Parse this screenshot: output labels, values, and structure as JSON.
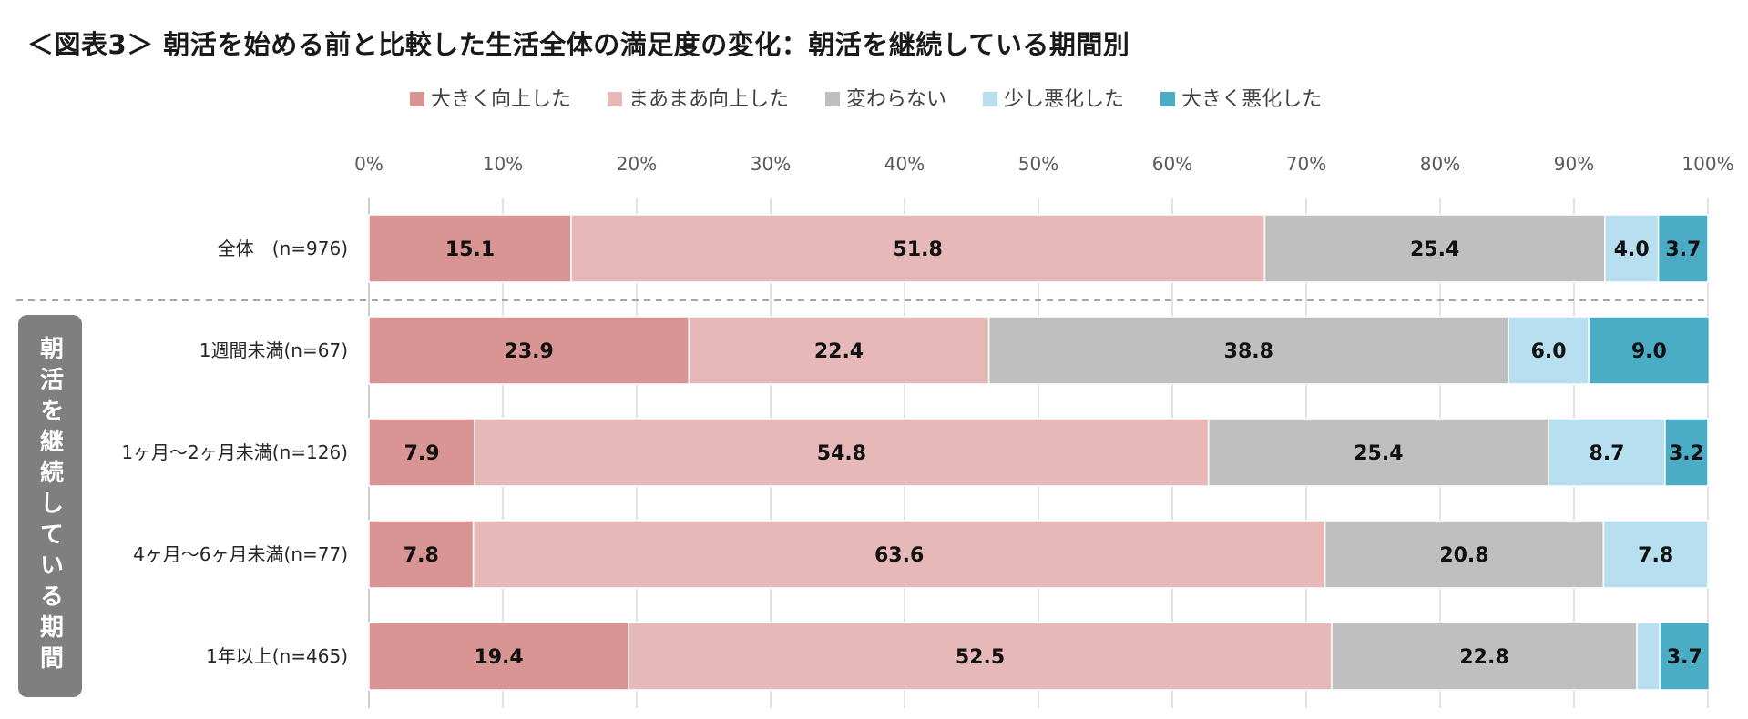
{
  "chart_data": {
    "type": "bar",
    "orientation": "horizontal",
    "stacked": true,
    "percent": true,
    "title": "＜図表3＞ 朝活を始める前と比較した生活全体の満足度の変化：朝活を継続している期間別",
    "group_label": "朝活を継続している期間",
    "categories": [
      "全体　(n=976)",
      "1週間未満(n=67)",
      "1ヶ月～2ヶ月未満(n=126)",
      "4ヶ月～6ヶ月未満(n=77)",
      "1年以上(n=465)"
    ],
    "series": [
      {
        "name": "大きく向上した",
        "color": "#d99594",
        "values": [
          15.1,
          23.9,
          7.9,
          7.8,
          19.4
        ],
        "labels": [
          "15.1",
          "23.9",
          "7.9",
          "7.8",
          "19.4"
        ]
      },
      {
        "name": "まあまあ向上した",
        "color": "#e6b9b8",
        "values": [
          51.8,
          22.4,
          54.8,
          63.6,
          52.5
        ],
        "labels": [
          "51.8",
          "22.4",
          "54.8",
          "63.6",
          "52.5"
        ]
      },
      {
        "name": "変わらない",
        "color": "#bfbfbf",
        "values": [
          25.4,
          38.8,
          25.4,
          20.8,
          22.8
        ],
        "labels": [
          "25.4",
          "38.8",
          "25.4",
          "20.8",
          "22.8"
        ]
      },
      {
        "name": "少し悪化した",
        "color": "#b7dfef",
        "values": [
          4.0,
          6.0,
          8.7,
          7.8,
          1.7
        ],
        "labels": [
          "4.0",
          "6.0",
          "8.7",
          "7.8",
          ""
        ]
      },
      {
        "name": "大きく悪化した",
        "color": "#4bacc6",
        "values": [
          3.7,
          9.0,
          3.2,
          0.0,
          3.7
        ],
        "labels": [
          "3.7",
          "9.0",
          "3.2",
          "",
          "3.7"
        ]
      }
    ],
    "xlim": [
      0,
      100
    ],
    "xticks": [
      "0%",
      "10%",
      "20%",
      "30%",
      "40%",
      "50%",
      "60%",
      "70%",
      "80%",
      "90%",
      "100%"
    ],
    "grid": true,
    "legend_position": "top"
  }
}
